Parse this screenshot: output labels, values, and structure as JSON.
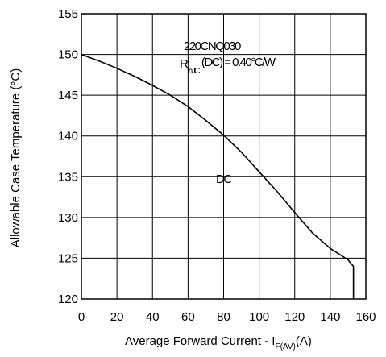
{
  "chart_data": {
    "type": "line",
    "xlabel_main": "Average Forward Current - I",
    "xlabel_sub": "F(AV)",
    "xlabel_unit": "(A)",
    "ylabel": "Allowable Case Temperature (°C)",
    "xlim": [
      0,
      160
    ],
    "ylim": [
      120,
      155
    ],
    "xticks": [
      0,
      20,
      40,
      60,
      80,
      100,
      120,
      140,
      160
    ],
    "yticks": [
      120,
      125,
      130,
      135,
      140,
      145,
      150,
      155
    ],
    "grid": true,
    "annotations": {
      "part": "220CNQ030",
      "rth_main": "R",
      "rth_sub": "thJC",
      "rth_rest": "(DC) = 0.40°C/W",
      "curve_label": "DC"
    },
    "series": [
      {
        "name": "DC",
        "x": [
          0,
          10,
          20,
          30,
          40,
          50,
          60,
          70,
          80,
          90,
          100,
          110,
          120,
          130,
          140,
          150,
          153,
          153
        ],
        "y": [
          150,
          149.2,
          148.3,
          147.3,
          146.2,
          145,
          143.6,
          141.9,
          140.1,
          138,
          135.6,
          133.2,
          130.6,
          128.1,
          126.2,
          124.8,
          124,
          120
        ]
      }
    ]
  }
}
